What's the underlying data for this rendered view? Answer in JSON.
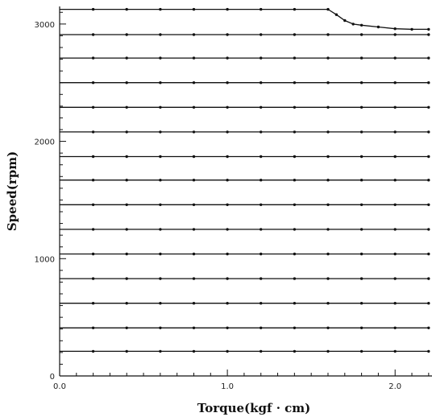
{
  "chart_data": {
    "type": "line",
    "title": "",
    "xlabel": "Torque(kgf · cm)",
    "ylabel": "Speed(rpm)",
    "xlim": [
      0.0,
      2.22
    ],
    "ylim": [
      0,
      3150
    ],
    "x_ticks": [
      {
        "value": 0.0,
        "label": "0.0"
      },
      {
        "value": 1.0,
        "label": "1.0"
      },
      {
        "value": 2.0,
        "label": "2.0"
      }
    ],
    "y_ticks": [
      {
        "value": 0,
        "label": "0"
      },
      {
        "value": 1000,
        "label": "1000"
      },
      {
        "value": 2000,
        "label": "2000"
      },
      {
        "value": 3000,
        "label": "3000"
      }
    ],
    "grid": false,
    "legend": "none",
    "x": [
      0.0,
      0.2,
      0.4,
      0.6,
      0.8,
      1.0,
      1.2,
      1.4,
      1.6,
      1.8,
      2.0,
      2.2
    ],
    "series": [
      {
        "values": [
          210,
          210,
          210,
          210,
          210,
          210,
          210,
          210,
          210,
          210,
          210,
          210
        ]
      },
      {
        "values": [
          410,
          410,
          410,
          410,
          410,
          410,
          410,
          410,
          410,
          410,
          410,
          410
        ]
      },
      {
        "values": [
          620,
          620,
          620,
          620,
          620,
          620,
          620,
          620,
          620,
          620,
          620,
          620
        ]
      },
      {
        "values": [
          830,
          830,
          830,
          830,
          830,
          830,
          830,
          830,
          830,
          830,
          830,
          830
        ]
      },
      {
        "values": [
          1040,
          1040,
          1040,
          1040,
          1040,
          1040,
          1040,
          1040,
          1040,
          1040,
          1040,
          1040
        ]
      },
      {
        "values": [
          1250,
          1250,
          1250,
          1250,
          1250,
          1250,
          1250,
          1250,
          1250,
          1250,
          1250,
          1250
        ]
      },
      {
        "values": [
          1460,
          1460,
          1460,
          1460,
          1460,
          1460,
          1460,
          1460,
          1460,
          1460,
          1460,
          1460
        ]
      },
      {
        "values": [
          1670,
          1670,
          1670,
          1670,
          1670,
          1670,
          1670,
          1670,
          1670,
          1670,
          1670,
          1670
        ]
      },
      {
        "values": [
          1870,
          1870,
          1870,
          1870,
          1870,
          1870,
          1870,
          1870,
          1870,
          1870,
          1870,
          1870
        ]
      },
      {
        "values": [
          2080,
          2080,
          2080,
          2080,
          2080,
          2080,
          2080,
          2080,
          2080,
          2080,
          2080,
          2080
        ]
      },
      {
        "values": [
          2290,
          2290,
          2290,
          2290,
          2290,
          2290,
          2290,
          2290,
          2290,
          2290,
          2290,
          2290
        ]
      },
      {
        "values": [
          2500,
          2500,
          2500,
          2500,
          2500,
          2500,
          2500,
          2500,
          2500,
          2500,
          2500,
          2500
        ]
      },
      {
        "values": [
          2710,
          2710,
          2710,
          2710,
          2710,
          2710,
          2710,
          2710,
          2710,
          2710,
          2710,
          2710
        ]
      },
      {
        "values": [
          2910,
          2910,
          2910,
          2910,
          2910,
          2910,
          2910,
          2910,
          2910,
          2910,
          2910,
          2910
        ]
      },
      {
        "x": [
          0.0,
          0.2,
          0.4,
          0.6,
          0.8,
          1.0,
          1.2,
          1.4,
          1.6,
          1.65,
          1.7,
          1.75,
          1.8,
          1.9,
          2.0,
          2.1,
          2.2
        ],
        "values": [
          3125,
          3125,
          3125,
          3125,
          3125,
          3125,
          3125,
          3125,
          3125,
          3080,
          3030,
          3000,
          2990,
          2975,
          2960,
          2955,
          2955
        ]
      }
    ]
  }
}
